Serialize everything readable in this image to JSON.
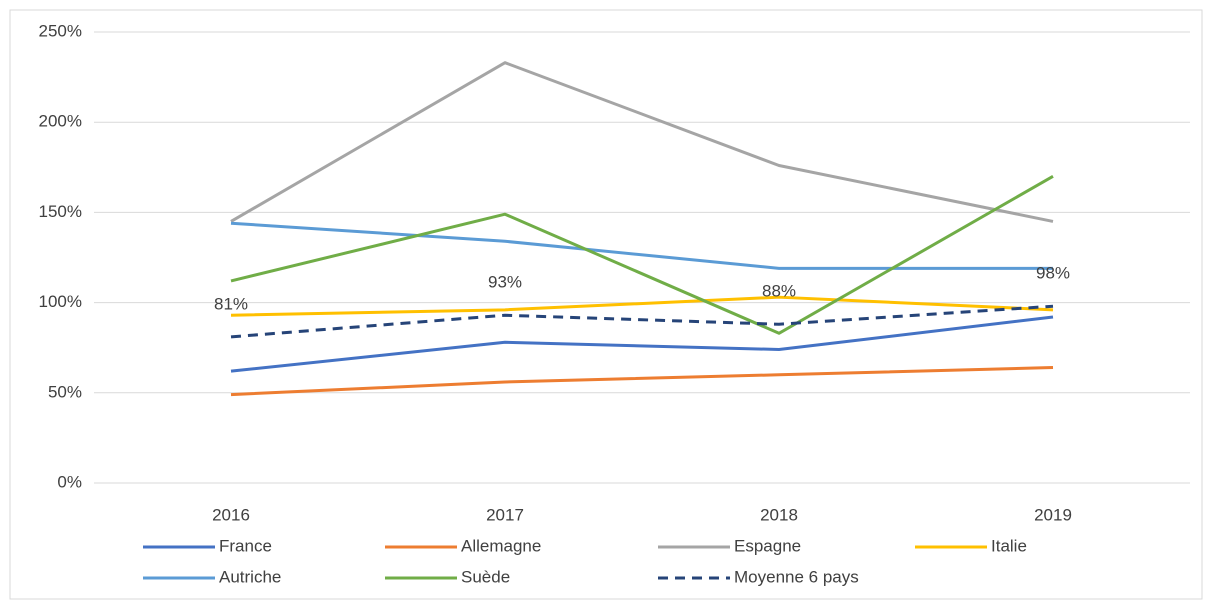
{
  "chart_data": {
    "type": "line",
    "categories": [
      "2016",
      "2017",
      "2018",
      "2019"
    ],
    "series": [
      {
        "name": "France",
        "color": "#4472c4",
        "values": [
          62,
          78,
          74,
          92
        ]
      },
      {
        "name": "Allemagne",
        "color": "#ed7d31",
        "values": [
          49,
          56,
          60,
          64
        ]
      },
      {
        "name": "Espagne",
        "color": "#a5a5a5",
        "values": [
          145,
          233,
          176,
          145
        ]
      },
      {
        "name": "Italie",
        "color": "#ffc000",
        "values": [
          93,
          96,
          103,
          96
        ]
      },
      {
        "name": "Autriche",
        "color": "#5b9bd5",
        "values": [
          144,
          134,
          119,
          119
        ]
      },
      {
        "name": "Suède",
        "color": "#70ad47",
        "values": [
          112,
          149,
          83,
          170
        ]
      },
      {
        "name": "Moyenne 6 pays",
        "color": "#264478",
        "dashed": true,
        "values": [
          81,
          93,
          88,
          98
        ],
        "value_labels": [
          "81%",
          "93%",
          "88%",
          "98%"
        ]
      }
    ],
    "ylim": [
      0,
      250
    ],
    "yticks": [
      {
        "value": 0,
        "label": "0%"
      },
      {
        "value": 50,
        "label": "50%"
      },
      {
        "value": 100,
        "label": "100%"
      },
      {
        "value": 150,
        "label": "150%"
      },
      {
        "value": 200,
        "label": "200%"
      },
      {
        "value": 250,
        "label": "250%"
      }
    ],
    "grid": true,
    "legend": "bottom"
  }
}
